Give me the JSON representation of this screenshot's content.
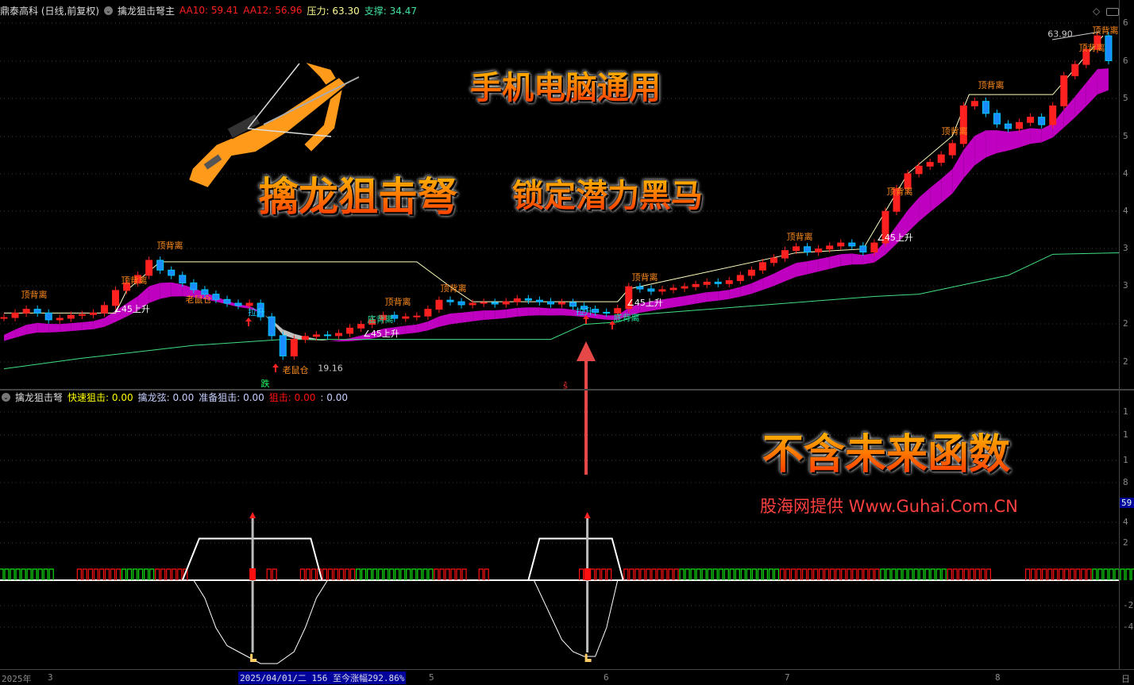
{
  "header": {
    "stock": "鼎泰高科 (日线,前复权)",
    "indicator": "擒龙狙击弩主",
    "aa10_label": "AA10:",
    "aa10": "59.41",
    "aa12_label": "AA12:",
    "aa12": "56.96",
    "pressure_label": "压力:",
    "pressure": "63.30",
    "support_label": "支撑:",
    "support": "34.47"
  },
  "sub_header": {
    "indicator": "擒龙狙击弩",
    "fast_label": "快速狙击:",
    "fast": "0.00",
    "string_label": "擒龙弦:",
    "string": "0.00",
    "ready_label": "准备狙击:",
    "ready": "0.00",
    "snipe_label": "狙击:",
    "snipe": "0.00",
    "extra": ": 0.00"
  },
  "overlay": {
    "slogan1": "手机电脑通用",
    "title": "擒龙狙击弩",
    "slogan2": "锁定潜力黑马",
    "slogan3": "不含未来函数",
    "credit": "股海网提供 Www.Guhai.Com.CN"
  },
  "annotations": {
    "top_div": "顶背离",
    "bottom_div": "底背离",
    "pull_up": "拉升",
    "rise45": "∠45上升",
    "rat": "老鼠仓",
    "low_price": "19.16",
    "high_price": "63.90",
    "fall": "跌",
    "s_mark": "ŝ"
  },
  "right_axis": {
    "main": [
      "6",
      "6",
      "5",
      "5",
      "4",
      "4",
      "3",
      "3",
      "2",
      "2"
    ],
    "lower": [
      "1",
      "1",
      "1",
      "8",
      "4",
      "2",
      "-2",
      "-4"
    ],
    "lower_current": "59."
  },
  "bottom_axis": {
    "year": "2025年",
    "months": [
      "3",
      "5",
      "6",
      "7",
      "8"
    ],
    "cursor_info": "2025/04/01/二 156 至今涨幅292.86%",
    "end": "日"
  },
  "colors": {
    "up": "#ff2020",
    "down": "#00c8ff",
    "ribbon_up": "#c000c0",
    "ribbon_down": "#c0c0c0",
    "support": "#40e080",
    "pressure": "#ffffc0",
    "pulse_red": "#ff1010",
    "pulse_green": "#10e010"
  },
  "chart_data": {
    "type": "candlestick",
    "ylim": [
      16,
      66
    ],
    "close": [
      25.9,
      26.5,
      27.0,
      26.5,
      25.6,
      25.8,
      26.2,
      26.3,
      26.5,
      27.5,
      29.5,
      30.5,
      31.5,
      33.5,
      32.2,
      31.5,
      30.5,
      29.6,
      29.0,
      28.3,
      27.8,
      27.5,
      27.8,
      26.0,
      23.5,
      20.8,
      23.0,
      23.4,
      23.6,
      23.5,
      23.8,
      24.5,
      25.0,
      25.6,
      26.2,
      25.8,
      26.0,
      26.1,
      27.0,
      28.2,
      28.0,
      27.6,
      27.8,
      27.9,
      27.7,
      28.0,
      28.4,
      28.2,
      28.0,
      27.7,
      27.9,
      27.4,
      27.0,
      26.6,
      26.5,
      27.1,
      30.0,
      29.7,
      29.4,
      29.6,
      29.8,
      30.0,
      30.3,
      30.6,
      30.4,
      30.8,
      31.5,
      32.2,
      33.2,
      33.8,
      34.8,
      35.3,
      34.6,
      35.0,
      35.4,
      35.8,
      35.4,
      34.6,
      35.8,
      40.0,
      43.0,
      45.0,
      46.0,
      46.5,
      47.5,
      49.0,
      54.0,
      54.6,
      53.0,
      51.6,
      51.0,
      51.8,
      52.5,
      51.5,
      54.0,
      58.0,
      59.5,
      61.5,
      63.3,
      60.0
    ],
    "support_line": [
      [
        0,
        19.1
      ],
      [
        7,
        20.5
      ],
      [
        17,
        22.2
      ],
      [
        25,
        23.0
      ],
      [
        49,
        23.0
      ],
      [
        52,
        25.0
      ],
      [
        55,
        25.3
      ],
      [
        57,
        26.3
      ],
      [
        78,
        28.7
      ],
      [
        82,
        29.0
      ],
      [
        90,
        31.5
      ],
      [
        94,
        34.3
      ],
      [
        100,
        34.5
      ]
    ],
    "pressure_line": [
      [
        0,
        26.5
      ],
      [
        10,
        26.5
      ],
      [
        11,
        29.5
      ],
      [
        14,
        33.3
      ],
      [
        37,
        33.3
      ],
      [
        40,
        30.0
      ],
      [
        42,
        28.0
      ],
      [
        55,
        28.0
      ],
      [
        56,
        29.7
      ],
      [
        71,
        34.5
      ],
      [
        77,
        35.0
      ],
      [
        81,
        45.0
      ],
      [
        85,
        50.0
      ],
      [
        86.5,
        55.5
      ],
      [
        94,
        55.5
      ],
      [
        98.5,
        63.3
      ]
    ],
    "indicator": {
      "plateau": [
        [
          16,
          0
        ],
        [
          17.5,
          3.5
        ],
        [
          27.5,
          3.5
        ],
        [
          28.5,
          0
        ],
        [
          47,
          0
        ],
        [
          48,
          3.5
        ],
        [
          54.5,
          3.5
        ],
        [
          55.5,
          0
        ]
      ],
      "dip": [
        [
          17,
          0
        ],
        [
          18,
          -1.5
        ],
        [
          19,
          -4
        ],
        [
          20,
          -5.5
        ],
        [
          21,
          -6
        ],
        [
          22,
          -6.5
        ],
        [
          23,
          -7
        ],
        [
          24.5,
          -7
        ],
        [
          26,
          -6
        ],
        [
          27,
          -4
        ],
        [
          28,
          -1.5
        ],
        [
          29,
          0
        ],
        [
          47.5,
          0
        ],
        [
          48,
          -1
        ],
        [
          49,
          -3
        ],
        [
          50,
          -5
        ],
        [
          51,
          -6
        ],
        [
          52,
          -6.4
        ],
        [
          53,
          -6.4
        ],
        [
          54,
          -4
        ],
        [
          55,
          0
        ]
      ],
      "signals": [
        22,
        52
      ],
      "pulses": "gggggnnrrrrgggrrrnnnnnnnrnnrrrrrgggggggrrrnrnnnnnnnnrrrnrrrrrgggggggggrrrrrrrrrggggggrrrrnnnrrrrrrgggg"
    }
  }
}
